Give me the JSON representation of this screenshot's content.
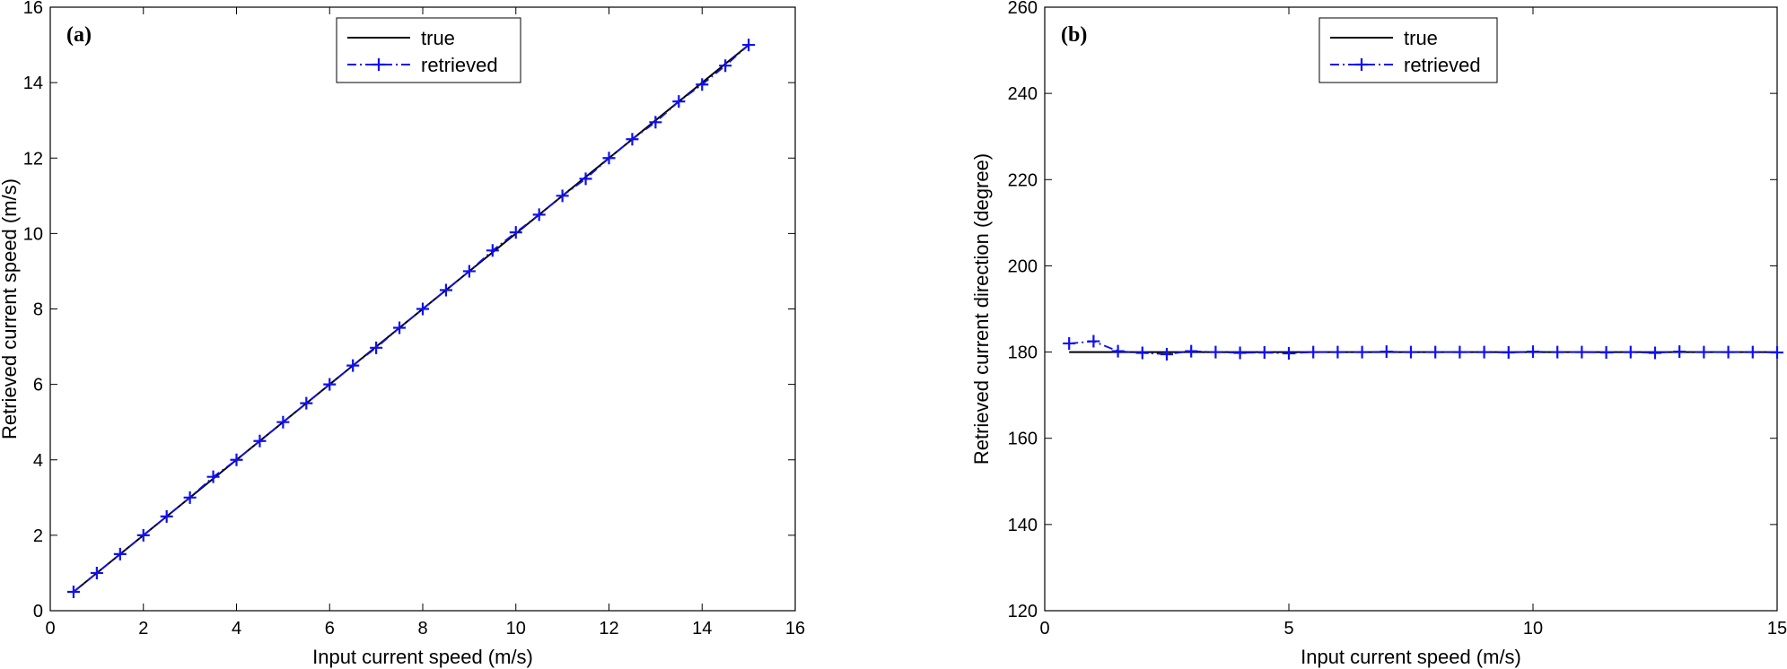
{
  "figure": {
    "colors": {
      "true": "#000000",
      "retrieved": "#1010f0",
      "frame": "#000000"
    }
  },
  "chart_data": [
    {
      "type": "line",
      "panel_label": "(a)",
      "xlabel": "Input current speed (m/s)",
      "ylabel": "Retrieved current speed (m/s)",
      "xlim": [
        0,
        16
      ],
      "ylim": [
        0,
        16
      ],
      "xticks": [
        0,
        2,
        4,
        6,
        8,
        10,
        12,
        14,
        16
      ],
      "yticks": [
        0,
        2,
        4,
        6,
        8,
        10,
        12,
        14,
        16
      ],
      "grid": false,
      "legend": {
        "position": "top-center",
        "entries": [
          "true",
          "retrieved"
        ]
      },
      "series": [
        {
          "name": "true",
          "style": "solid",
          "x": [
            0.5,
            15
          ],
          "y": [
            0.5,
            15
          ]
        },
        {
          "name": "retrieved",
          "style": "dash-dot with + markers",
          "x": [
            0.5,
            1,
            1.5,
            2,
            2.5,
            3,
            3.5,
            4,
            4.5,
            5,
            5.5,
            6,
            6.5,
            7,
            7.5,
            8,
            8.5,
            9,
            9.5,
            10,
            10.5,
            11,
            11.5,
            12,
            12.5,
            13,
            13.5,
            14,
            14.5,
            15
          ],
          "y": [
            0.5,
            1.0,
            1.5,
            2.0,
            2.5,
            3.0,
            3.55,
            4.0,
            4.5,
            5.0,
            5.5,
            6.0,
            6.5,
            6.97,
            7.5,
            8.0,
            8.5,
            9.0,
            9.55,
            10.03,
            10.5,
            11.0,
            11.45,
            12.0,
            12.5,
            12.95,
            13.5,
            13.95,
            14.45,
            15.0
          ]
        }
      ]
    },
    {
      "type": "line",
      "panel_label": "(b)",
      "xlabel": "Input current speed (m/s)",
      "ylabel": "Retrieved current direction (degree)",
      "xlim": [
        0,
        15
      ],
      "ylim": [
        120,
        260
      ],
      "xticks": [
        0,
        5,
        10,
        15
      ],
      "yticks": [
        120,
        140,
        160,
        180,
        200,
        220,
        240,
        260
      ],
      "grid": false,
      "legend": {
        "position": "top-center",
        "entries": [
          "true",
          "retrieved"
        ]
      },
      "series": [
        {
          "name": "true",
          "style": "solid",
          "x": [
            0.5,
            15
          ],
          "y": [
            180,
            180
          ]
        },
        {
          "name": "retrieved",
          "style": "dash-dot with + markers",
          "x": [
            0.5,
            1,
            1.5,
            2,
            2.5,
            3,
            3.5,
            4,
            4.5,
            5,
            5.5,
            6,
            6.5,
            7,
            7.5,
            8,
            8.5,
            9,
            9.5,
            10,
            10.5,
            11,
            11.5,
            12,
            12.5,
            13,
            13.5,
            14,
            14.5,
            15
          ],
          "y": [
            182.0,
            182.5,
            180.2,
            179.8,
            179.5,
            180.2,
            180.0,
            179.8,
            179.9,
            179.7,
            180.0,
            180.0,
            180.0,
            180.1,
            180.0,
            180.0,
            180.0,
            180.0,
            179.9,
            180.1,
            180.0,
            180.0,
            179.9,
            180.0,
            179.8,
            180.1,
            180.0,
            180.0,
            180.0,
            179.9
          ]
        }
      ]
    }
  ]
}
